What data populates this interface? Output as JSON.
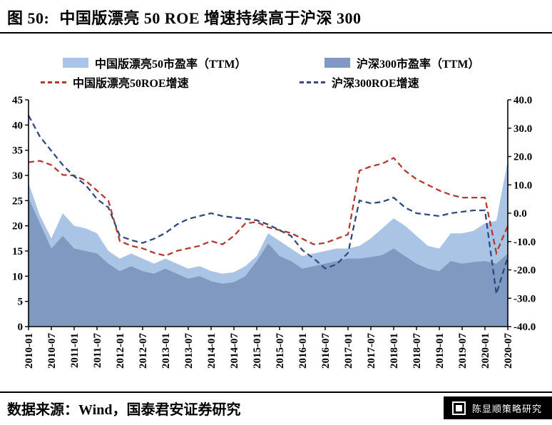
{
  "header": {
    "figure_label": "图 50:",
    "title": "中国版漂亮 50 ROE 增速持续高于沪深 300"
  },
  "footer": {
    "source": "数据来源：Wind，国泰君安证券研究",
    "watermark": "陈显顺策略研究"
  },
  "chart_data": {
    "type": "combo-area-line",
    "title": "中国版漂亮 50 ROE 增速持续高于沪深 300",
    "grid": false,
    "legend_position": "top",
    "x": [
      "2010-01",
      "2010-04",
      "2010-07",
      "2010-10",
      "2011-01",
      "2011-04",
      "2011-07",
      "2011-10",
      "2012-01",
      "2012-04",
      "2012-07",
      "2012-10",
      "2013-01",
      "2013-04",
      "2013-07",
      "2013-10",
      "2014-01",
      "2014-04",
      "2014-07",
      "2014-10",
      "2015-01",
      "2015-04",
      "2015-07",
      "2015-10",
      "2016-01",
      "2016-04",
      "2016-07",
      "2016-10",
      "2017-01",
      "2017-04",
      "2017-07",
      "2017-10",
      "2018-01",
      "2018-04",
      "2018-07",
      "2018-10",
      "2019-01",
      "2019-04",
      "2019-07",
      "2019-10",
      "2020-01",
      "2020-04",
      "2020-07"
    ],
    "x_tick_labels": [
      "2010-01",
      "2010-07",
      "2011-01",
      "2011-07",
      "2012-01",
      "2012-07",
      "2013-01",
      "2013-07",
      "2014-01",
      "2014-07",
      "2015-01",
      "2015-07",
      "2016-01",
      "2016-07",
      "2017-01",
      "2017-07",
      "2018-01",
      "2018-07",
      "2019-01",
      "2019-07",
      "2020-01",
      "2020-07"
    ],
    "left_axis": {
      "min": 0,
      "max": 45,
      "ticks": [
        45,
        40,
        35,
        30,
        25,
        20,
        15,
        10,
        5,
        0
      ]
    },
    "right_axis": {
      "min": -40,
      "max": 40,
      "ticks": [
        "40.0",
        "30.0",
        "20.0",
        "10.0",
        "0.0",
        "-10.0",
        "-20.0",
        "-30.0",
        "-40.0"
      ]
    },
    "series": [
      {
        "name": "中国版漂亮50市盈率（TTM）",
        "type": "area",
        "axis": "left",
        "color": "#a9c4e4",
        "values": [
          28.5,
          22,
          17.5,
          22.5,
          20,
          19.5,
          18.5,
          15,
          13.5,
          14.5,
          13.5,
          12.5,
          13.5,
          12.5,
          11.5,
          12,
          11,
          10.5,
          10.8,
          12,
          14,
          18.5,
          17,
          15.5,
          14,
          14.5,
          15,
          15.5,
          15.5,
          16,
          17.5,
          19.5,
          21.5,
          20,
          18,
          16,
          15.5,
          18.5,
          18.5,
          19,
          20.5,
          21,
          33
        ]
      },
      {
        "name": "沪深300市盈率（TTM）",
        "type": "area",
        "axis": "left",
        "color": "#7f99c0",
        "values": [
          25.5,
          20.5,
          15.5,
          18,
          15.5,
          15,
          14.5,
          12.5,
          11,
          12,
          11,
          10.5,
          11.5,
          10.5,
          9.5,
          10,
          9,
          8.5,
          8.8,
          10,
          13,
          16.5,
          14,
          13,
          11.5,
          12,
          12.5,
          13,
          13.5,
          13.5,
          13.8,
          14.2,
          15.5,
          14,
          12.5,
          11.5,
          11,
          13,
          12.5,
          12.8,
          13,
          12.5,
          14.5
        ]
      },
      {
        "name": "中国版漂亮50ROE增速",
        "type": "line-dashed",
        "axis": "right",
        "color": "#b23a30",
        "values": [
          18,
          18.5,
          17,
          13.5,
          13.3,
          11.5,
          8,
          4.4,
          -9.8,
          -11.5,
          -12.4,
          -14,
          -15,
          -13.3,
          -12.4,
          -11.5,
          -9.8,
          -11,
          -8,
          -3.6,
          -3.1,
          -5,
          -6,
          -7,
          -9,
          -11,
          -10.5,
          -9,
          -7.5,
          15,
          16.5,
          17.5,
          19.5,
          15,
          12,
          10,
          8,
          6.5,
          5.5,
          5.5,
          5.5,
          -14,
          -4.5
        ]
      },
      {
        "name": "沪深300ROE增速",
        "type": "line-dashed",
        "axis": "right",
        "color": "#2e4a80",
        "values": [
          34.5,
          27,
          22,
          17,
          13,
          10,
          5,
          2,
          -8,
          -9.5,
          -10.5,
          -9,
          -7,
          -4,
          -2,
          -1,
          0,
          -1,
          -1.5,
          -2,
          -2.5,
          -4,
          -6,
          -8,
          -13,
          -16,
          -19.5,
          -18,
          -14,
          4.5,
          3.5,
          4,
          5.5,
          2,
          0,
          -0.5,
          -1,
          0,
          0.5,
          1,
          1,
          -28.5,
          -15.5
        ]
      }
    ]
  }
}
